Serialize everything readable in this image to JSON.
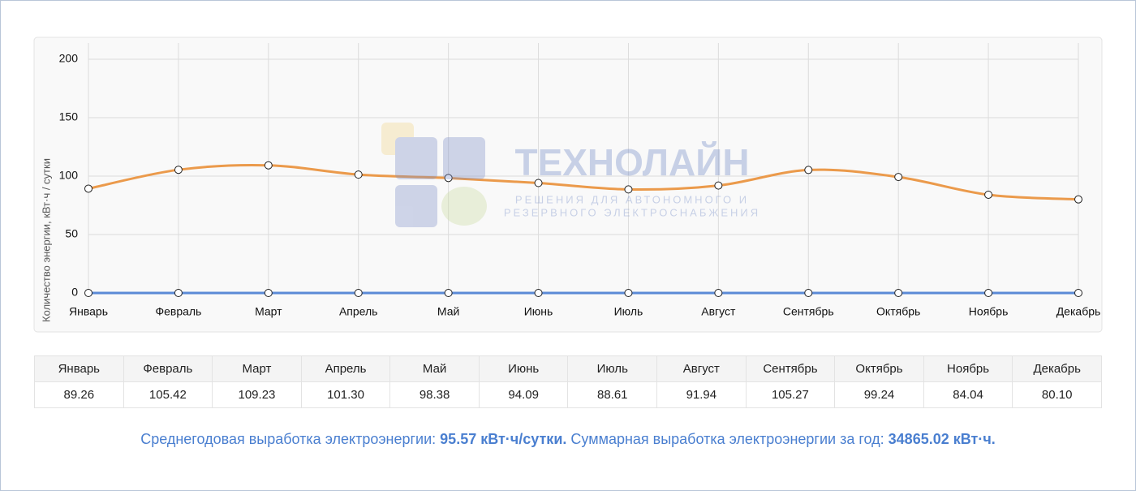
{
  "chart_data": {
    "type": "line",
    "y_label": "Количество энергии, кВт·ч / сутки",
    "categories": [
      "Январь",
      "Февраль",
      "Март",
      "Апрель",
      "Май",
      "Июнь",
      "Июль",
      "Август",
      "Сентябрь",
      "Октябрь",
      "Ноябрь",
      "Декабрь"
    ],
    "series": [
      {
        "color": "#eb9a4b",
        "values": [
          89.26,
          105.42,
          109.23,
          101.3,
          98.38,
          94.09,
          88.61,
          91.94,
          105.27,
          99.24,
          84.04,
          80.1
        ],
        "value_labels": [
          "89.26",
          "105.42",
          "109.23",
          "101.30",
          "98.38",
          "94.09",
          "88.61",
          "91.94",
          "105.27",
          "99.24",
          "84.04",
          "80.10"
        ]
      },
      {
        "color": "#5b8ad6",
        "values": [
          0,
          0,
          0,
          0,
          0,
          0,
          0,
          0,
          0,
          0,
          0,
          0
        ]
      }
    ],
    "ylim": [
      0,
      200
    ],
    "yticks": [
      0,
      50,
      100,
      150,
      200
    ],
    "grid": true
  },
  "watermark": {
    "brand": "ТЕХНОЛАЙН",
    "tagline_1": "РЕШЕНИЯ ДЛЯ АВТОНОМНОГО И",
    "tagline_2": "РЕЗЕРВНОГО ЭЛЕКТРОСНАБЖЕНИЯ"
  },
  "summary": {
    "text_1": "Среднегодовая выработка электроэнергии: ",
    "value_1": "95.57 кВт·ч/сутки.",
    "text_2": " Суммарная выработка электроэнергии за год: ",
    "value_2": "34865.02 кВт·ч."
  }
}
